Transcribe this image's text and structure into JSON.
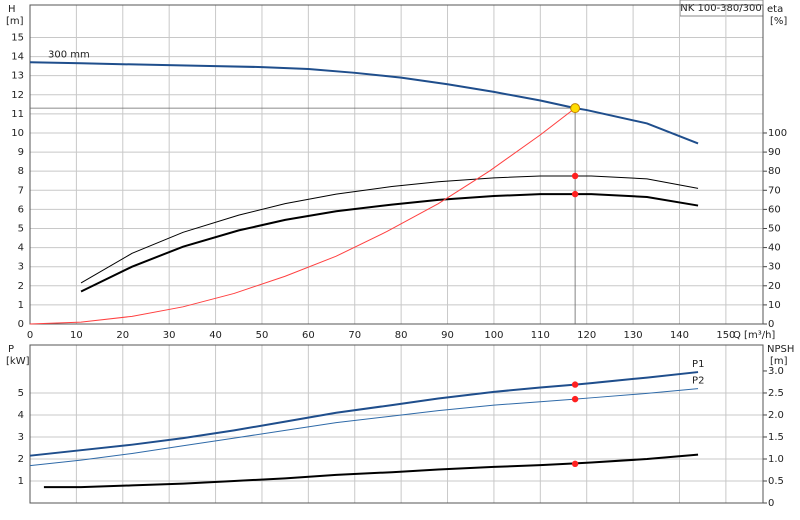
{
  "chart_data": [
    {
      "type": "line",
      "title": "NK 100-380/300",
      "ylabel": "H",
      "yunit": "[m]",
      "y2label": "eta",
      "y2unit": "[%]",
      "xlabel": "Q [m³/h]",
      "xlim": [
        0,
        158
      ],
      "xticks": [
        0,
        10,
        20,
        30,
        40,
        50,
        60,
        70,
        80,
        90,
        100,
        110,
        120,
        130,
        140,
        150
      ],
      "ylim": [
        0,
        16.7
      ],
      "yticks": [
        0,
        1,
        2,
        3,
        4,
        5,
        6,
        7,
        8,
        9,
        10,
        11,
        12,
        13,
        14,
        15
      ],
      "y2lim": [
        0,
        167
      ],
      "y2ticks": [
        0,
        10,
        20,
        30,
        40,
        50,
        60,
        70,
        80,
        90,
        100
      ],
      "grid": true,
      "series": [
        {
          "name": "300 mm",
          "color": "#1f4e8c",
          "linewidth": 2,
          "x": [
            0,
            11,
            20,
            40,
            50,
            60,
            70,
            80,
            90,
            100,
            110,
            117.5,
            120,
            133,
            144
          ],
          "values": [
            13.7,
            13.65,
            13.6,
            13.5,
            13.45,
            13.35,
            13.15,
            12.9,
            12.55,
            12.15,
            11.7,
            11.3,
            11.2,
            10.5,
            9.45
          ]
        },
        {
          "color": "#000000",
          "linewidth": 1,
          "axis": "y2",
          "x": [
            11,
            22,
            33,
            45,
            55,
            66,
            78,
            88,
            100,
            110,
            117.5,
            121,
            133,
            144
          ],
          "values": [
            21.5,
            37,
            48,
            57,
            63,
            68,
            72,
            74.5,
            76.5,
            77.5,
            77.5,
            77.5,
            76,
            71
          ]
        },
        {
          "color": "#000000",
          "linewidth": 2,
          "axis": "y2",
          "x": [
            11,
            22,
            33,
            45,
            55,
            66,
            78,
            88,
            100,
            110,
            117.5,
            121,
            133,
            144
          ],
          "values": [
            17,
            30,
            40.5,
            49,
            54.5,
            59,
            62.5,
            65,
            67,
            68,
            68,
            68,
            66.5,
            62
          ]
        },
        {
          "color": "#ff4040",
          "linewidth": 1,
          "x": [
            0,
            11,
            22,
            33,
            44,
            55,
            66,
            77,
            88,
            99,
            110,
            117.5
          ],
          "values": [
            0,
            0.1,
            0.4,
            0.9,
            1.6,
            2.5,
            3.55,
            4.85,
            6.3,
            8.0,
            9.9,
            11.3
          ]
        }
      ],
      "points": [
        {
          "x": 117.5,
          "y": 11.3,
          "color": "#ffdd00"
        },
        {
          "x": 117.5,
          "y": 77.5,
          "color": "#ff2020",
          "axis": "y2"
        },
        {
          "x": 117.5,
          "y": 68,
          "color": "#ff2020",
          "axis": "y2"
        }
      ]
    },
    {
      "type": "line",
      "ylabel": "P",
      "yunit": "[kW]",
      "y2label": "NPSH",
      "y2unit": "[m]",
      "xlim": [
        0,
        158
      ],
      "ylim": [
        0,
        7.18
      ],
      "yticks": [
        1,
        2,
        3,
        4,
        5
      ],
      "y2lim": [
        0,
        3.59
      ],
      "y2ticks": [
        0,
        0.5,
        {
          "value": 1,
          "label": "1.0"
        },
        1.5,
        {
          "value": 2,
          "label": "2.0"
        },
        2.5,
        {
          "value": 3,
          "label": "3.0"
        }
      ],
      "grid": true,
      "series": [
        {
          "name": "P1",
          "color": "#1f4e8c",
          "linewidth": 2,
          "x": [
            0,
            11,
            22,
            33,
            44,
            55,
            66,
            78,
            88,
            100,
            110,
            117.5,
            121,
            133,
            144
          ],
          "values": [
            2.15,
            2.4,
            2.65,
            2.95,
            3.3,
            3.7,
            4.1,
            4.45,
            4.75,
            5.05,
            5.25,
            5.38,
            5.45,
            5.7,
            5.95
          ]
        },
        {
          "name": "P2",
          "color": "#2f6aa8",
          "linewidth": 1,
          "x": [
            0,
            11,
            22,
            33,
            44,
            55,
            66,
            78,
            88,
            100,
            110,
            117.5,
            121,
            133,
            144
          ],
          "values": [
            1.7,
            1.95,
            2.25,
            2.6,
            2.95,
            3.3,
            3.65,
            3.95,
            4.2,
            4.45,
            4.6,
            4.72,
            4.78,
            4.98,
            5.2
          ]
        },
        {
          "color": "#000000",
          "linewidth": 2,
          "axis": "y2",
          "x": [
            3,
            11,
            22,
            33,
            44,
            55,
            66,
            78,
            88,
            100,
            110,
            117.5,
            121,
            133,
            144
          ],
          "values": [
            0.36,
            0.36,
            0.4,
            0.44,
            0.5,
            0.56,
            0.64,
            0.7,
            0.76,
            0.82,
            0.86,
            0.9,
            0.92,
            1.0,
            1.1
          ]
        }
      ],
      "points": [
        {
          "x": 117.5,
          "y": 5.38,
          "color": "#ff2020"
        },
        {
          "x": 117.5,
          "y": 4.72,
          "color": "#ff2020"
        },
        {
          "x": 117.5,
          "y": 0.89,
          "color": "#ff2020",
          "axis": "y2"
        }
      ]
    }
  ]
}
